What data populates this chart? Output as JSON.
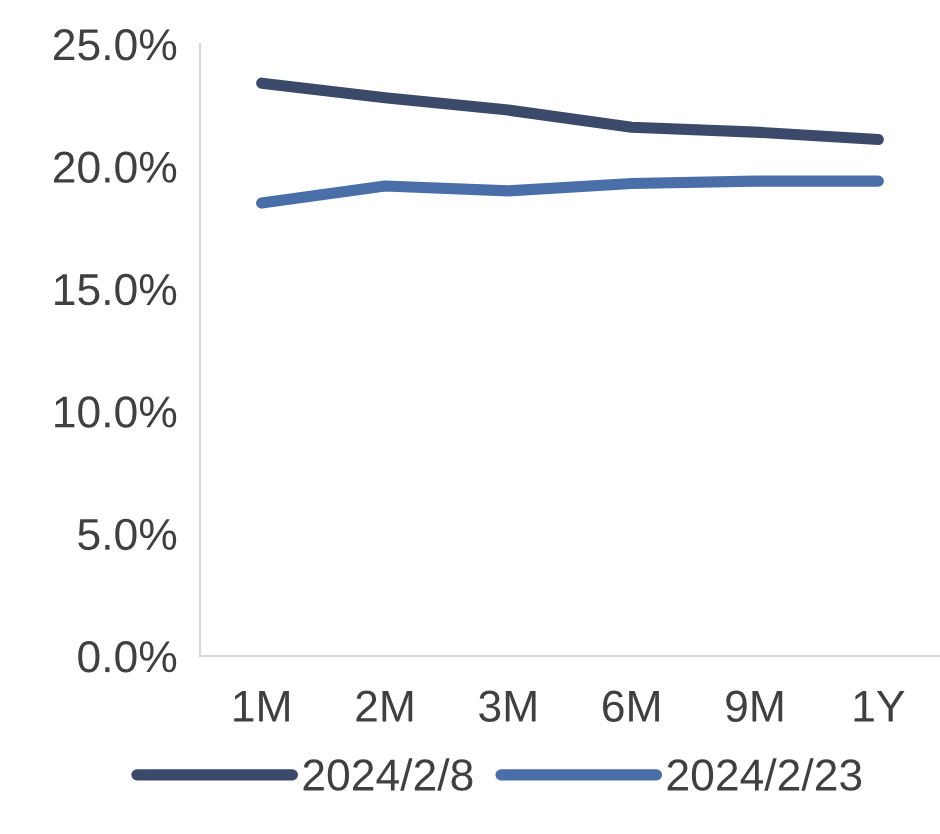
{
  "chart_data": {
    "type": "line",
    "categories": [
      "1M",
      "2M",
      "3M",
      "6M",
      "9M",
      "1Y"
    ],
    "series": [
      {
        "name": "2024/2/8",
        "color": "#3b4a6b",
        "values": [
          23.4,
          22.8,
          22.3,
          21.6,
          21.4,
          21.1
        ]
      },
      {
        "name": "2024/2/23",
        "color": "#4a6fa8",
        "values": [
          18.5,
          19.2,
          19.0,
          19.3,
          19.4,
          19.4
        ]
      }
    ],
    "ylim": [
      0,
      25
    ],
    "yticks": [
      {
        "value": 0,
        "label": "0.0%"
      },
      {
        "value": 5,
        "label": "5.0%"
      },
      {
        "value": 10,
        "label": "10.0%"
      },
      {
        "value": 15,
        "label": "15.0%"
      },
      {
        "value": 20,
        "label": "20.0%"
      },
      {
        "value": 25,
        "label": "25.0%"
      }
    ],
    "grid": false,
    "legend": "bottom",
    "marker": "none",
    "line_style": "solid"
  }
}
